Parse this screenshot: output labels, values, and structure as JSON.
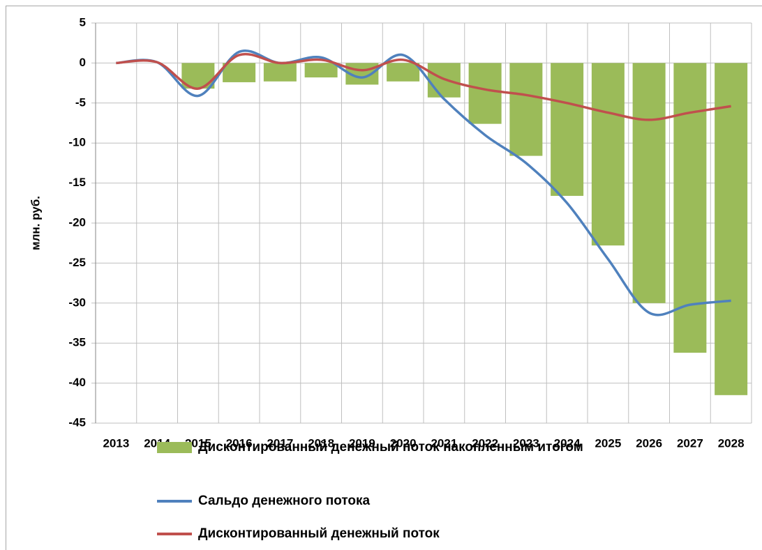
{
  "chart_data": {
    "type": "bar",
    "y_label": "млн. руб.",
    "categories": [
      "2013",
      "2014",
      "2015",
      "2016",
      "2017",
      "2018",
      "2019",
      "2020",
      "2021",
      "2022",
      "2023",
      "2024",
      "2025",
      "2026",
      "2027",
      "2028"
    ],
    "series": [
      {
        "name": "Дисконтированный денежный поток накопленным итогом",
        "type": "bar",
        "color": "#9bbb59",
        "values": [
          0,
          0,
          -3.2,
          -2.4,
          -2.3,
          -1.8,
          -2.7,
          -2.3,
          -4.3,
          -7.6,
          -11.6,
          -16.6,
          -22.8,
          -30,
          -36.2,
          -41.5
        ]
      },
      {
        "name": "Сальдо денежного потока",
        "type": "line",
        "color": "#4f81bd",
        "values": [
          0,
          0.1,
          -4.1,
          1.4,
          0,
          0.7,
          -1.8,
          1.0,
          -4.5,
          -9.0,
          -12.5,
          -17.5,
          -24.5,
          -31.2,
          -30.2,
          -29.7
        ]
      },
      {
        "name": "Дисконтированный денежный поток",
        "type": "line",
        "color": "#c0504d",
        "values": [
          0,
          0.1,
          -3.2,
          1.0,
          0,
          0.4,
          -0.9,
          0.4,
          -2.0,
          -3.3,
          -4.0,
          -5.0,
          -6.2,
          -7.1,
          -6.2,
          -5.4
        ]
      }
    ],
    "ylim": [
      -45,
      5
    ],
    "yticks": [
      5,
      0,
      -5,
      -10,
      -15,
      -20,
      -25,
      -30,
      -35,
      -40,
      -45
    ],
    "grid": true,
    "legend": "bottom"
  }
}
